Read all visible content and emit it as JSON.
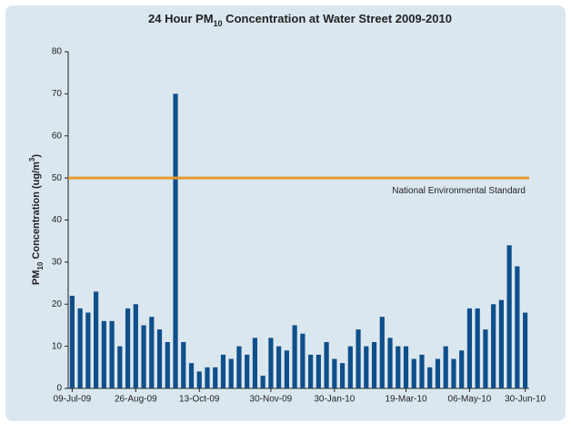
{
  "chart_data": {
    "type": "bar",
    "title_parts": [
      "24 Hour PM",
      "10",
      " Concentration at Water Street 2009-2010"
    ],
    "ylabel_parts": [
      "PM",
      "10",
      " Concentration (ug/m",
      "3",
      ")"
    ],
    "categories": [
      "09-Jul-09",
      null,
      null,
      null,
      null,
      null,
      null,
      null,
      "26-Aug-09",
      null,
      null,
      null,
      null,
      null,
      null,
      null,
      "13-Oct-09",
      null,
      null,
      null,
      null,
      null,
      null,
      null,
      null,
      "30-Nov-09",
      null,
      null,
      null,
      null,
      null,
      null,
      null,
      "30-Jan-10",
      null,
      null,
      null,
      null,
      null,
      null,
      null,
      null,
      "19-Mar-10",
      null,
      null,
      null,
      null,
      null,
      null,
      null,
      "06-May-10",
      null,
      null,
      null,
      null,
      null,
      null,
      "30-Jun-10"
    ],
    "values": [
      22,
      19,
      18,
      23,
      16,
      16,
      10,
      19,
      20,
      15,
      17,
      14,
      11,
      70,
      11,
      6,
      4,
      5,
      5,
      8,
      7,
      10,
      8,
      12,
      3,
      12,
      10,
      9,
      15,
      13,
      8,
      8,
      11,
      7,
      6,
      10,
      14,
      10,
      11,
      17,
      12,
      10,
      10,
      7,
      8,
      5,
      7,
      10,
      7,
      9,
      19,
      19,
      14,
      20,
      21,
      34,
      29,
      18
    ],
    "color": "#0f4f8a",
    "ylim": [
      0,
      80
    ],
    "yticks": [
      0,
      10,
      20,
      30,
      40,
      50,
      60,
      70,
      80
    ],
    "reference_line": {
      "value": 50,
      "label": "National Environmental Standard",
      "color": "#e49a2c"
    }
  }
}
